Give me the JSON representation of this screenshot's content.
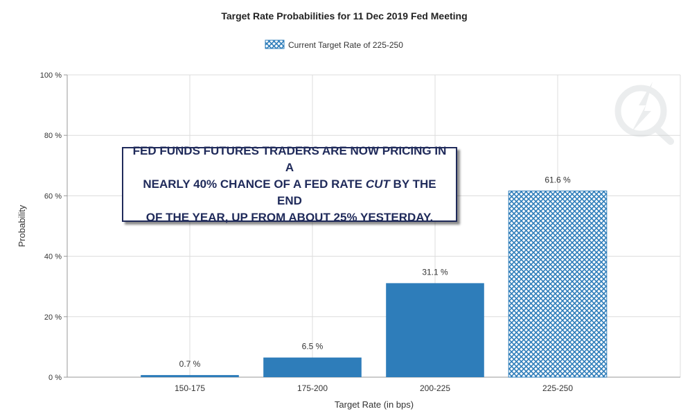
{
  "chart_data": {
    "type": "bar",
    "title": "Target Rate Probabilities for 11 Dec 2019 Fed Meeting",
    "legend": {
      "label": "Current Target Rate of 225-250",
      "position": "top-center"
    },
    "xlabel": "Target Rate (in bps)",
    "ylabel": "Probability",
    "categories": [
      "150-175",
      "175-200",
      "200-225",
      "225-250"
    ],
    "values": [
      0.7,
      6.5,
      31.1,
      61.6
    ],
    "value_labels": [
      "0.7 %",
      "6.5 %",
      "31.1 %",
      "61.6 %"
    ],
    "current_target_category": "225-250",
    "ylim": [
      0,
      100
    ],
    "yticks": [
      0,
      20,
      40,
      60,
      80,
      100
    ],
    "ytick_labels": [
      "0 %",
      "20 %",
      "40 %",
      "60 %",
      "80 %",
      "100 %"
    ],
    "grid": true,
    "colors": {
      "bar": "#2e7dba",
      "grid": "#dcdcdc",
      "text": "#333333"
    }
  },
  "annotation": {
    "line1": "FED FUNDS FUTURES TRADERS ARE NOW PRICING IN A",
    "line2_before": "NEARLY 40% CHANCE OF A FED RATE ",
    "line2_italic": "CUT",
    "line2_after": " BY THE END",
    "line3": "OF THE YEAR, UP FROM ABOUT 25% YESTERDAY.",
    "text_color": "#1f2a5a"
  }
}
